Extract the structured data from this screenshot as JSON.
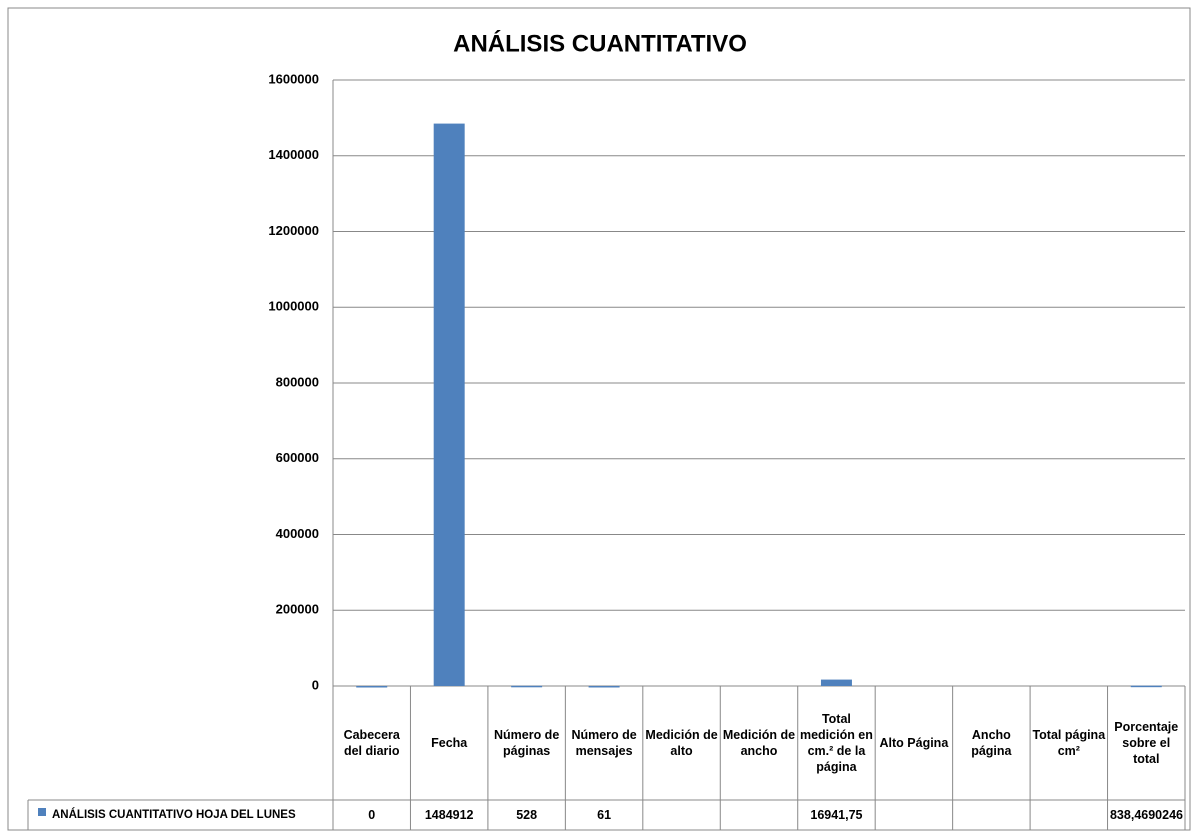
{
  "chart_data": {
    "type": "bar",
    "title": "ANÁLISIS CUANTITATIVO",
    "categories": [
      "Cabecera del diario",
      "Fecha",
      "Número de páginas",
      "Número de mensajes",
      "Medición de alto",
      "Medición de ancho",
      "Total medición en cm.² de la página",
      "Alto Página",
      "Ancho página",
      "Total página cm²",
      "Porcentaje sobre el total"
    ],
    "series": [
      {
        "name": "ANÁLISIS CUANTITATIVO  HOJA DEL LUNES",
        "color": "#4f81bd",
        "values": [
          0,
          1484912,
          528,
          61,
          null,
          null,
          16941.75,
          null,
          null,
          null,
          838.4690246
        ],
        "value_labels": [
          "0",
          "1484912",
          "528",
          "61",
          null,
          null,
          "16941,75",
          null,
          null,
          null,
          "838,4690246"
        ]
      }
    ],
    "ylim": [
      0,
      1600000
    ],
    "yticks": [
      0,
      200000,
      400000,
      600000,
      800000,
      1000000,
      1200000,
      1400000,
      1600000
    ],
    "grid": true
  }
}
